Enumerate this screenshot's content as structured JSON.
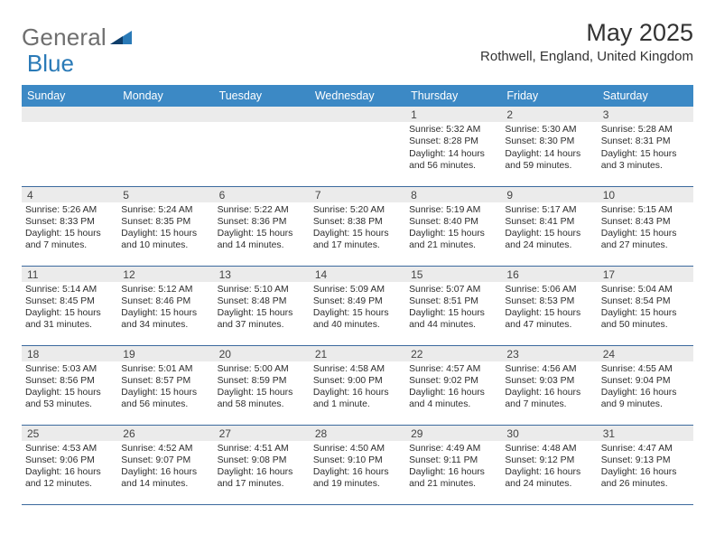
{
  "brand": {
    "part1": "General",
    "part2": "Blue"
  },
  "title": "May 2025",
  "location": "Rothwell, England, United Kingdom",
  "colors": {
    "header_bg": "#3c89c5",
    "header_text": "#ffffff",
    "daynum_bg": "#ebebeb",
    "cell_border": "#3c6a9e",
    "brand_gray": "#6f6f6f",
    "brand_blue": "#2a7ab7",
    "text": "#2d2d2d"
  },
  "weekdays": [
    "Sunday",
    "Monday",
    "Tuesday",
    "Wednesday",
    "Thursday",
    "Friday",
    "Saturday"
  ],
  "weeks": [
    [
      null,
      null,
      null,
      null,
      {
        "n": "1",
        "sunrise": "5:32 AM",
        "sunset": "8:28 PM",
        "daylight": "14 hours and 56 minutes."
      },
      {
        "n": "2",
        "sunrise": "5:30 AM",
        "sunset": "8:30 PM",
        "daylight": "14 hours and 59 minutes."
      },
      {
        "n": "3",
        "sunrise": "5:28 AM",
        "sunset": "8:31 PM",
        "daylight": "15 hours and 3 minutes."
      }
    ],
    [
      {
        "n": "4",
        "sunrise": "5:26 AM",
        "sunset": "8:33 PM",
        "daylight": "15 hours and 7 minutes."
      },
      {
        "n": "5",
        "sunrise": "5:24 AM",
        "sunset": "8:35 PM",
        "daylight": "15 hours and 10 minutes."
      },
      {
        "n": "6",
        "sunrise": "5:22 AM",
        "sunset": "8:36 PM",
        "daylight": "15 hours and 14 minutes."
      },
      {
        "n": "7",
        "sunrise": "5:20 AM",
        "sunset": "8:38 PM",
        "daylight": "15 hours and 17 minutes."
      },
      {
        "n": "8",
        "sunrise": "5:19 AM",
        "sunset": "8:40 PM",
        "daylight": "15 hours and 21 minutes."
      },
      {
        "n": "9",
        "sunrise": "5:17 AM",
        "sunset": "8:41 PM",
        "daylight": "15 hours and 24 minutes."
      },
      {
        "n": "10",
        "sunrise": "5:15 AM",
        "sunset": "8:43 PM",
        "daylight": "15 hours and 27 minutes."
      }
    ],
    [
      {
        "n": "11",
        "sunrise": "5:14 AM",
        "sunset": "8:45 PM",
        "daylight": "15 hours and 31 minutes."
      },
      {
        "n": "12",
        "sunrise": "5:12 AM",
        "sunset": "8:46 PM",
        "daylight": "15 hours and 34 minutes."
      },
      {
        "n": "13",
        "sunrise": "5:10 AM",
        "sunset": "8:48 PM",
        "daylight": "15 hours and 37 minutes."
      },
      {
        "n": "14",
        "sunrise": "5:09 AM",
        "sunset": "8:49 PM",
        "daylight": "15 hours and 40 minutes."
      },
      {
        "n": "15",
        "sunrise": "5:07 AM",
        "sunset": "8:51 PM",
        "daylight": "15 hours and 44 minutes."
      },
      {
        "n": "16",
        "sunrise": "5:06 AM",
        "sunset": "8:53 PM",
        "daylight": "15 hours and 47 minutes."
      },
      {
        "n": "17",
        "sunrise": "5:04 AM",
        "sunset": "8:54 PM",
        "daylight": "15 hours and 50 minutes."
      }
    ],
    [
      {
        "n": "18",
        "sunrise": "5:03 AM",
        "sunset": "8:56 PM",
        "daylight": "15 hours and 53 minutes."
      },
      {
        "n": "19",
        "sunrise": "5:01 AM",
        "sunset": "8:57 PM",
        "daylight": "15 hours and 56 minutes."
      },
      {
        "n": "20",
        "sunrise": "5:00 AM",
        "sunset": "8:59 PM",
        "daylight": "15 hours and 58 minutes."
      },
      {
        "n": "21",
        "sunrise": "4:58 AM",
        "sunset": "9:00 PM",
        "daylight": "16 hours and 1 minute."
      },
      {
        "n": "22",
        "sunrise": "4:57 AM",
        "sunset": "9:02 PM",
        "daylight": "16 hours and 4 minutes."
      },
      {
        "n": "23",
        "sunrise": "4:56 AM",
        "sunset": "9:03 PM",
        "daylight": "16 hours and 7 minutes."
      },
      {
        "n": "24",
        "sunrise": "4:55 AM",
        "sunset": "9:04 PM",
        "daylight": "16 hours and 9 minutes."
      }
    ],
    [
      {
        "n": "25",
        "sunrise": "4:53 AM",
        "sunset": "9:06 PM",
        "daylight": "16 hours and 12 minutes."
      },
      {
        "n": "26",
        "sunrise": "4:52 AM",
        "sunset": "9:07 PM",
        "daylight": "16 hours and 14 minutes."
      },
      {
        "n": "27",
        "sunrise": "4:51 AM",
        "sunset": "9:08 PM",
        "daylight": "16 hours and 17 minutes."
      },
      {
        "n": "28",
        "sunrise": "4:50 AM",
        "sunset": "9:10 PM",
        "daylight": "16 hours and 19 minutes."
      },
      {
        "n": "29",
        "sunrise": "4:49 AM",
        "sunset": "9:11 PM",
        "daylight": "16 hours and 21 minutes."
      },
      {
        "n": "30",
        "sunrise": "4:48 AM",
        "sunset": "9:12 PM",
        "daylight": "16 hours and 24 minutes."
      },
      {
        "n": "31",
        "sunrise": "4:47 AM",
        "sunset": "9:13 PM",
        "daylight": "16 hours and 26 minutes."
      }
    ]
  ],
  "labels": {
    "sunrise": "Sunrise:",
    "sunset": "Sunset:",
    "daylight": "Daylight:"
  }
}
